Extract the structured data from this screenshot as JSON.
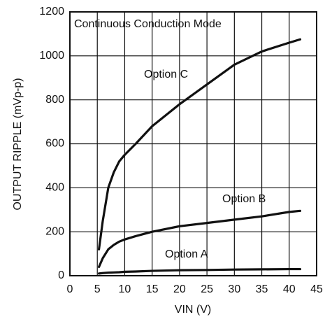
{
  "chart_data": {
    "type": "line",
    "xlabel": "VIN (V)",
    "ylabel": "OUTPUT RIPPLE (mVp-p)",
    "annotations": [
      "Continuous Conduction Mode",
      "Option C",
      "Option B",
      "Option A"
    ],
    "x": [
      5.3,
      6,
      7,
      8,
      9,
      10,
      12,
      15,
      20,
      25,
      30,
      35,
      40,
      42
    ],
    "series": [
      {
        "name": "Option C",
        "color": "#111111",
        "values": [
          120,
          250,
          400,
          470,
          520,
          550,
          600,
          680,
          780,
          870,
          960,
          1020,
          1060,
          1075
        ]
      },
      {
        "name": "Option B",
        "color": "#111111",
        "values": [
          40,
          80,
          120,
          140,
          155,
          165,
          180,
          200,
          225,
          240,
          255,
          270,
          290,
          295
        ]
      },
      {
        "name": "Option A",
        "color": "#111111",
        "values": [
          10,
          12,
          14,
          15,
          16,
          18,
          19,
          22,
          25,
          26,
          28,
          29,
          30,
          30
        ]
      }
    ],
    "xlim": [
      0,
      45
    ],
    "xticks": [
      0,
      5,
      10,
      15,
      20,
      25,
      30,
      35,
      40,
      45
    ],
    "ylim": [
      0,
      1200
    ],
    "yticks": [
      0,
      200,
      400,
      600,
      800,
      1000,
      1200
    ],
    "grid": true
  }
}
